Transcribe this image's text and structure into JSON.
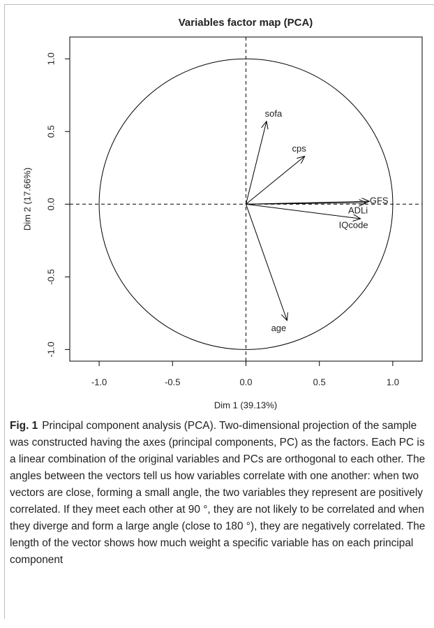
{
  "chart_data": {
    "type": "vector",
    "title": "Variables factor map (PCA)",
    "xlabel": "Dim 1 (39.13%)",
    "ylabel": "Dim 2 (17.66%)",
    "labels": [
      "sofa",
      "cps",
      "GFS",
      "ADLi",
      "IQcode",
      "age"
    ],
    "x": [
      0.14,
      0.4,
      0.84,
      0.82,
      0.78,
      0.28
    ],
    "values": [
      0.57,
      0.33,
      0.02,
      0.01,
      -0.1,
      -0.8
    ],
    "color": "#000000",
    "xlim": [
      -1.2,
      1.2
    ],
    "ylim": [
      -1.08,
      1.15
    ],
    "xticks": [
      {
        "value": -1,
        "label": "-1.0"
      },
      -0.5,
      {
        "value": 0,
        "label": "0.0"
      },
      0.5,
      {
        "value": 1,
        "label": "1.0"
      }
    ],
    "yticks": [
      {
        "value": -1,
        "label": "-1.0"
      },
      -0.5,
      {
        "value": 0,
        "label": "0.0"
      },
      0.5,
      {
        "value": 1,
        "label": "1.0"
      }
    ]
  },
  "caption": {
    "label": "Fig. 1",
    "text": "Principal component analysis (PCA). Two-dimensional projection of the sample was constructed having the axes (principal components, PC) as the factors. Each PC is a linear combination of the original variables and PCs are orthogonal to each other. The angles between the vectors tell us how variables correlate with one another: when two vectors are close, forming a small angle, the two variables they represent are positively correlated. If they meet each other at 90 °, they are not likely to be correlated and when they diverge and form a large angle (close to 180 °), they are negatively correlated. The length of the vector shows how much weight a specific variable has on each principal component"
  }
}
